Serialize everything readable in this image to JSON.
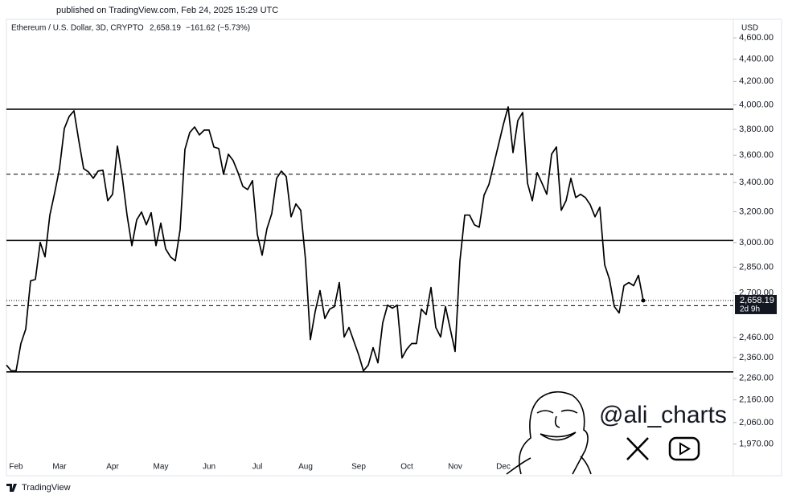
{
  "chart_data": {
    "type": "line",
    "published": "published on TradingView.com, Feb 24, 2025 15:29 UTC",
    "title": "Ethereum / U.S. Dollar, 3D, CRYPTO",
    "last_price_text": "2,658.19",
    "change_text": "−161.62 (−5.73%)",
    "currency": "USD",
    "watermark": "@ali_charts",
    "brand": "TradingView",
    "color": "#000000",
    "log_scale": true,
    "ylim": [
      1850,
      4750
    ],
    "yticks": [
      {
        "value": 1970,
        "label": "1,970.00"
      },
      {
        "value": 2060,
        "label": "2,060.00"
      },
      {
        "value": 2160,
        "label": "2,160.00"
      },
      {
        "value": 2260,
        "label": "2,260.00"
      },
      {
        "value": 2360,
        "label": "2,360.00"
      },
      {
        "value": 2460,
        "label": "2,460.00"
      },
      {
        "value": 2700,
        "label": "2,700.00"
      },
      {
        "value": 2850,
        "label": "2,850.00"
      },
      {
        "value": 3000,
        "label": "3,000.00"
      },
      {
        "value": 3200,
        "label": "3,200.00"
      },
      {
        "value": 3400,
        "label": "3,400.00"
      },
      {
        "value": 3600,
        "label": "3,600.00"
      },
      {
        "value": 3800,
        "label": "3,800.00"
      },
      {
        "value": 4000,
        "label": "4,000.00"
      },
      {
        "value": 4200,
        "label": "4,200.00"
      },
      {
        "value": 4400,
        "label": "4,400.00"
      },
      {
        "value": 4600,
        "label": "4,600.00"
      }
    ],
    "levels": [
      {
        "value": 3963,
        "style": "solid"
      },
      {
        "value": 3460,
        "style": "dashed"
      },
      {
        "value": 3013,
        "style": "solid"
      },
      {
        "value": 2630,
        "style": "dashed"
      },
      {
        "value": 2290,
        "style": "solid"
      }
    ],
    "price_tag": {
      "value": 2658.19,
      "label": "2,658.19",
      "countdown": "2d 9h"
    },
    "categories": [
      null,
      null,
      "Feb",
      null,
      null,
      null,
      null,
      null,
      null,
      null,
      null,
      "Mar",
      null,
      null,
      null,
      null,
      null,
      null,
      null,
      null,
      null,
      null,
      "Apr",
      null,
      null,
      null,
      null,
      null,
      null,
      null,
      null,
      null,
      "May",
      null,
      null,
      null,
      null,
      null,
      null,
      null,
      null,
      null,
      "Jun",
      null,
      null,
      null,
      null,
      null,
      null,
      null,
      null,
      null,
      "Jul",
      null,
      null,
      null,
      null,
      null,
      null,
      null,
      null,
      null,
      "Aug",
      null,
      null,
      null,
      null,
      null,
      null,
      null,
      null,
      null,
      null,
      "Sep",
      null,
      null,
      null,
      null,
      null,
      null,
      null,
      null,
      null,
      "Oct",
      null,
      null,
      null,
      null,
      null,
      null,
      null,
      null,
      null,
      "Nov",
      null,
      null,
      null,
      null,
      null,
      null,
      null,
      null,
      null,
      "Dec",
      null,
      null,
      null,
      null,
      null,
      null,
      null,
      null,
      null,
      null,
      null,
      null,
      null,
      null,
      null,
      null,
      null,
      null,
      null,
      null,
      null,
      null,
      null,
      null,
      null,
      null,
      null,
      null,
      null
    ],
    "values": [
      2323,
      2295,
      2295,
      2430,
      2504,
      2769,
      2778,
      3001,
      2912,
      3177,
      3329,
      3501,
      3807,
      3904,
      3950,
      3712,
      3501,
      3477,
      3431,
      3483,
      3489,
      3274,
      3318,
      3669,
      3443,
      3177,
      2981,
      3145,
      3198,
      3114,
      3193,
      2981,
      3124,
      2961,
      2912,
      2888,
      3083,
      3645,
      3775,
      3819,
      3756,
      3794,
      3794,
      3663,
      3651,
      3460,
      3608,
      3560,
      3472,
      3374,
      3351,
      3414,
      3052,
      2922,
      3088,
      3187,
      3431,
      3483,
      3443,
      3166,
      3252,
      3209,
      2892,
      2450,
      2598,
      2714,
      2560,
      2611,
      2625,
      2760,
      2463,
      2513,
      2442,
      2374,
      2295,
      2323,
      2409,
      2334,
      2538,
      2633,
      2616,
      2633,
      2358,
      2402,
      2430,
      2430,
      2611,
      2581,
      2732,
      2513,
      2463,
      2625,
      2504,
      2390,
      2888,
      3177,
      3177,
      3114,
      3098,
      3312,
      3386,
      3530,
      3681,
      3839,
      3983,
      3620,
      3871,
      3936,
      3397,
      3274,
      3472,
      3397,
      3318,
      3608,
      3663,
      3209,
      3274,
      3431,
      3296,
      3318,
      3296,
      3247,
      3166,
      3230,
      2864,
      2778,
      2625,
      2590,
      2742,
      2760,
      2742,
      2802,
      2658.19
    ]
  }
}
